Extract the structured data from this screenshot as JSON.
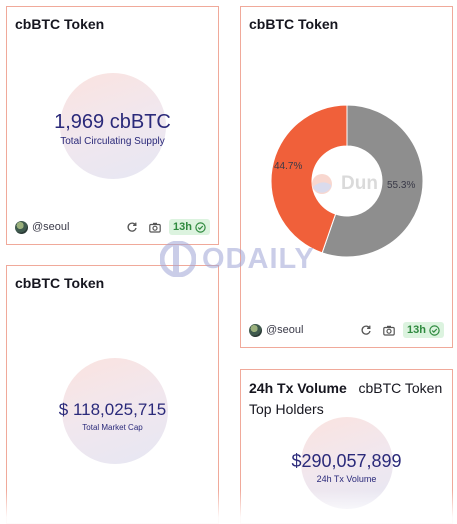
{
  "cards": {
    "supply": {
      "title": "cbBTC Token",
      "value": "1,969 cbBTC",
      "label": "Total Circulating Supply",
      "author": "@seoul",
      "age": "13h"
    },
    "donut": {
      "title": "cbBTC Token",
      "author": "@seoul",
      "age": "13h",
      "watermark": "Dun",
      "slices": [
        {
          "label": "44.7%",
          "value": 44.7,
          "color": "#f0603a"
        },
        {
          "label": "55.3%",
          "value": 55.3,
          "color": "#8e8e8e"
        }
      ]
    },
    "marketcap": {
      "title": "cbBTC Token",
      "value": "$ 118,025,715",
      "label": "Total Market Cap"
    },
    "volume": {
      "title": "24h Tx Volume",
      "title_extra_1": "cbBTC Token",
      "title_extra_2": "Top Holders",
      "value": "$290,057,899",
      "label": "24h Tx Volume"
    }
  },
  "watermark": {
    "text": "ODAILY"
  },
  "colors": {
    "accent_text": "#2b2a7a",
    "card_border": "#f0a99a",
    "badge_bg": "#dcf3df",
    "badge_text": "#2f8a3f"
  },
  "icons": [
    "avatar",
    "refresh-icon",
    "camera-icon",
    "check-circle-icon",
    "odaily-logo-icon"
  ]
}
